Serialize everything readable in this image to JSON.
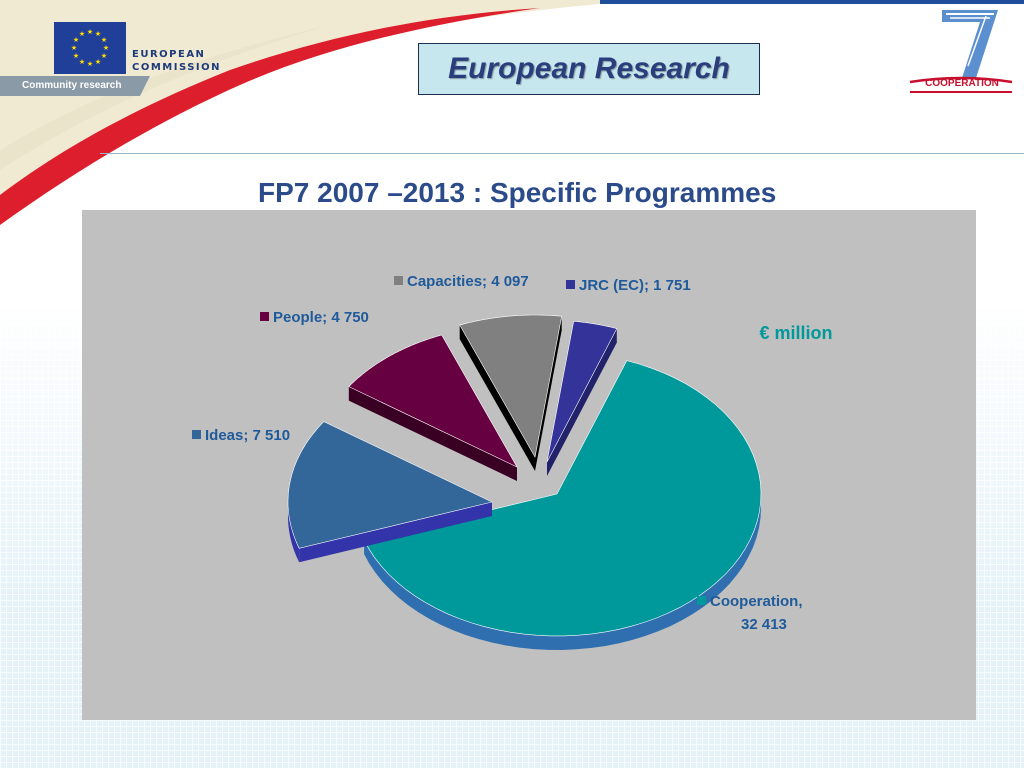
{
  "header": {
    "brand_box_text": "European Research",
    "ec_logo_line1": "EUROPEAN",
    "ec_logo_line2": "COMMISSION",
    "ec_subtitle": "Community research",
    "fp7_logo_label": "COOPERATION"
  },
  "colors": {
    "title": "#2b4b8a",
    "cooperation": "#00999b",
    "ideas": "#336699",
    "people": "#660040",
    "capacities": "#808080",
    "jrc": "#333399",
    "chart_background": "#c0c0c0"
  },
  "chart_data": {
    "type": "pie",
    "style": "3d-exploded",
    "title": "FP7 2007 –2013 : Specific Programmes",
    "unit_label": "€ million",
    "slices": [
      {
        "label": "Cooperation",
        "value": 32413,
        "display": "Cooperation, 32 413"
      },
      {
        "label": "Ideas",
        "value": 7510,
        "display": "Ideas; 7 510"
      },
      {
        "label": "People",
        "value": 4750,
        "display": "People; 4 750"
      },
      {
        "label": "Capacities",
        "value": 4097,
        "display": "Capacities; 4 097"
      },
      {
        "label": "JRC (EC)",
        "value": 1751,
        "display": "JRC (EC); 1 751"
      }
    ]
  }
}
